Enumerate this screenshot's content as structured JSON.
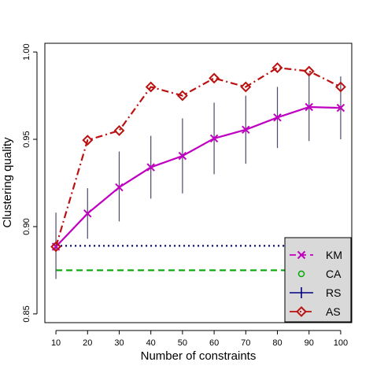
{
  "chart_data": {
    "type": "line",
    "title": "",
    "xlabel": "Number of constraints",
    "ylabel": "Clustering quality",
    "xlim": [
      6.5,
      103.5
    ],
    "ylim": [
      0.845,
      1.005
    ],
    "x": [
      10,
      20,
      30,
      40,
      50,
      60,
      70,
      80,
      90,
      100
    ],
    "x_ticks": [
      "10",
      "20",
      "30",
      "40",
      "50",
      "60",
      "70",
      "80",
      "90",
      "100"
    ],
    "y_ticks": [
      0.85,
      0.9,
      0.95,
      1.0
    ],
    "y_tick_labels": [
      "0.85",
      "0.90",
      "0.95",
      "1.00"
    ],
    "grid": false,
    "legend_position": "bottom-right",
    "series": [
      {
        "name": "KM",
        "color": "#c000c0",
        "line": "dashed",
        "marker": "cross-icon",
        "values": [
          0.8885,
          0.9075,
          0.9225,
          0.934,
          0.9405,
          0.9505,
          0.9555,
          0.9625,
          0.9685,
          0.968
        ]
      },
      {
        "name": "CA",
        "color": "#00aa00",
        "line": "dashed",
        "marker": "circle-icon",
        "values": [
          0.875,
          0.875,
          0.875,
          0.875,
          0.875,
          0.875,
          0.875,
          0.875,
          0.875,
          0.875
        ]
      },
      {
        "name": "RS",
        "color": "#000080",
        "line": "dotted",
        "marker": "plus-icon",
        "values": [
          0.889,
          0.889,
          0.889,
          0.889,
          0.889,
          0.889,
          0.889,
          0.889,
          0.889,
          0.889
        ],
        "error_low": [
          0.87,
          0.893,
          0.903,
          0.916,
          0.919,
          0.93,
          0.936,
          0.945,
          0.949,
          0.95
        ],
        "error_high": [
          0.908,
          0.922,
          0.943,
          0.952,
          0.962,
          0.971,
          0.975,
          0.98,
          0.988,
          0.986
        ]
      },
      {
        "name": "AS",
        "color": "#bb1111",
        "line": "dotdash",
        "marker": "diamond-icon",
        "values": [
          0.8885,
          0.9495,
          0.955,
          0.98,
          0.975,
          0.985,
          0.98,
          0.991,
          0.989,
          0.98
        ]
      }
    ]
  }
}
